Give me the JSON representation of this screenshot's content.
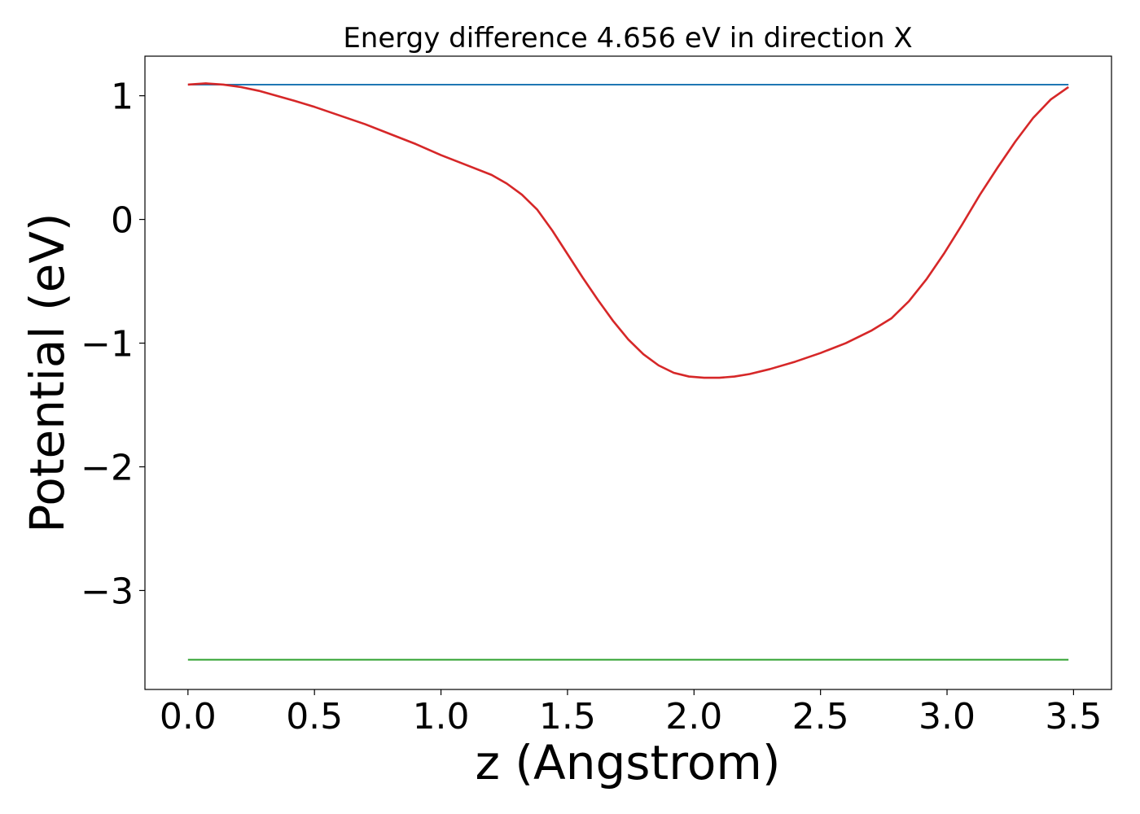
{
  "chart_data": {
    "type": "line",
    "title": "Energy difference 4.656 eV in direction X",
    "xlabel": "z (Angstrom)",
    "ylabel": "Potential (eV)",
    "xlim": [
      -0.17,
      3.65
    ],
    "ylim": [
      -3.8,
      1.32
    ],
    "xticks": [
      0.0,
      0.5,
      1.0,
      1.5,
      2.0,
      2.5,
      3.0,
      3.5
    ],
    "xtick_labels": [
      "0.0",
      "0.5",
      "1.0",
      "1.5",
      "2.0",
      "2.5",
      "3.0",
      "3.5"
    ],
    "yticks": [
      1,
      0,
      -1,
      -2,
      -3
    ],
    "ytick_labels": [
      "1",
      "0",
      "−1",
      "−2",
      "−3"
    ],
    "grid": false,
    "series": [
      {
        "color": "#1f77b4",
        "style": "horizontal",
        "x": [
          0.0,
          3.48
        ],
        "y": [
          1.09,
          1.09
        ]
      },
      {
        "color": "#2ca02c",
        "style": "horizontal",
        "x": [
          0.0,
          3.48
        ],
        "y": [
          -3.56,
          -3.56
        ]
      },
      {
        "color": "#d62728",
        "style": "curve",
        "x": [
          0.0,
          0.07,
          0.14,
          0.21,
          0.28,
          0.35,
          0.42,
          0.5,
          0.6,
          0.7,
          0.8,
          0.9,
          1.0,
          1.1,
          1.2,
          1.26,
          1.32,
          1.38,
          1.44,
          1.5,
          1.56,
          1.62,
          1.68,
          1.74,
          1.8,
          1.86,
          1.92,
          1.98,
          2.04,
          2.1,
          2.16,
          2.22,
          2.3,
          2.4,
          2.5,
          2.6,
          2.7,
          2.78,
          2.85,
          2.92,
          2.99,
          3.06,
          3.13,
          3.2,
          3.27,
          3.34,
          3.41,
          3.48
        ],
        "y": [
          1.09,
          1.1,
          1.09,
          1.07,
          1.04,
          1.0,
          0.96,
          0.91,
          0.84,
          0.77,
          0.69,
          0.61,
          0.52,
          0.44,
          0.36,
          0.29,
          0.2,
          0.08,
          -0.09,
          -0.28,
          -0.47,
          -0.65,
          -0.82,
          -0.97,
          -1.09,
          -1.18,
          -1.24,
          -1.27,
          -1.28,
          -1.28,
          -1.27,
          -1.25,
          -1.21,
          -1.15,
          -1.08,
          -1.0,
          -0.9,
          -0.8,
          -0.66,
          -0.48,
          -0.27,
          -0.04,
          0.2,
          0.42,
          0.63,
          0.82,
          0.97,
          1.07
        ]
      }
    ]
  }
}
